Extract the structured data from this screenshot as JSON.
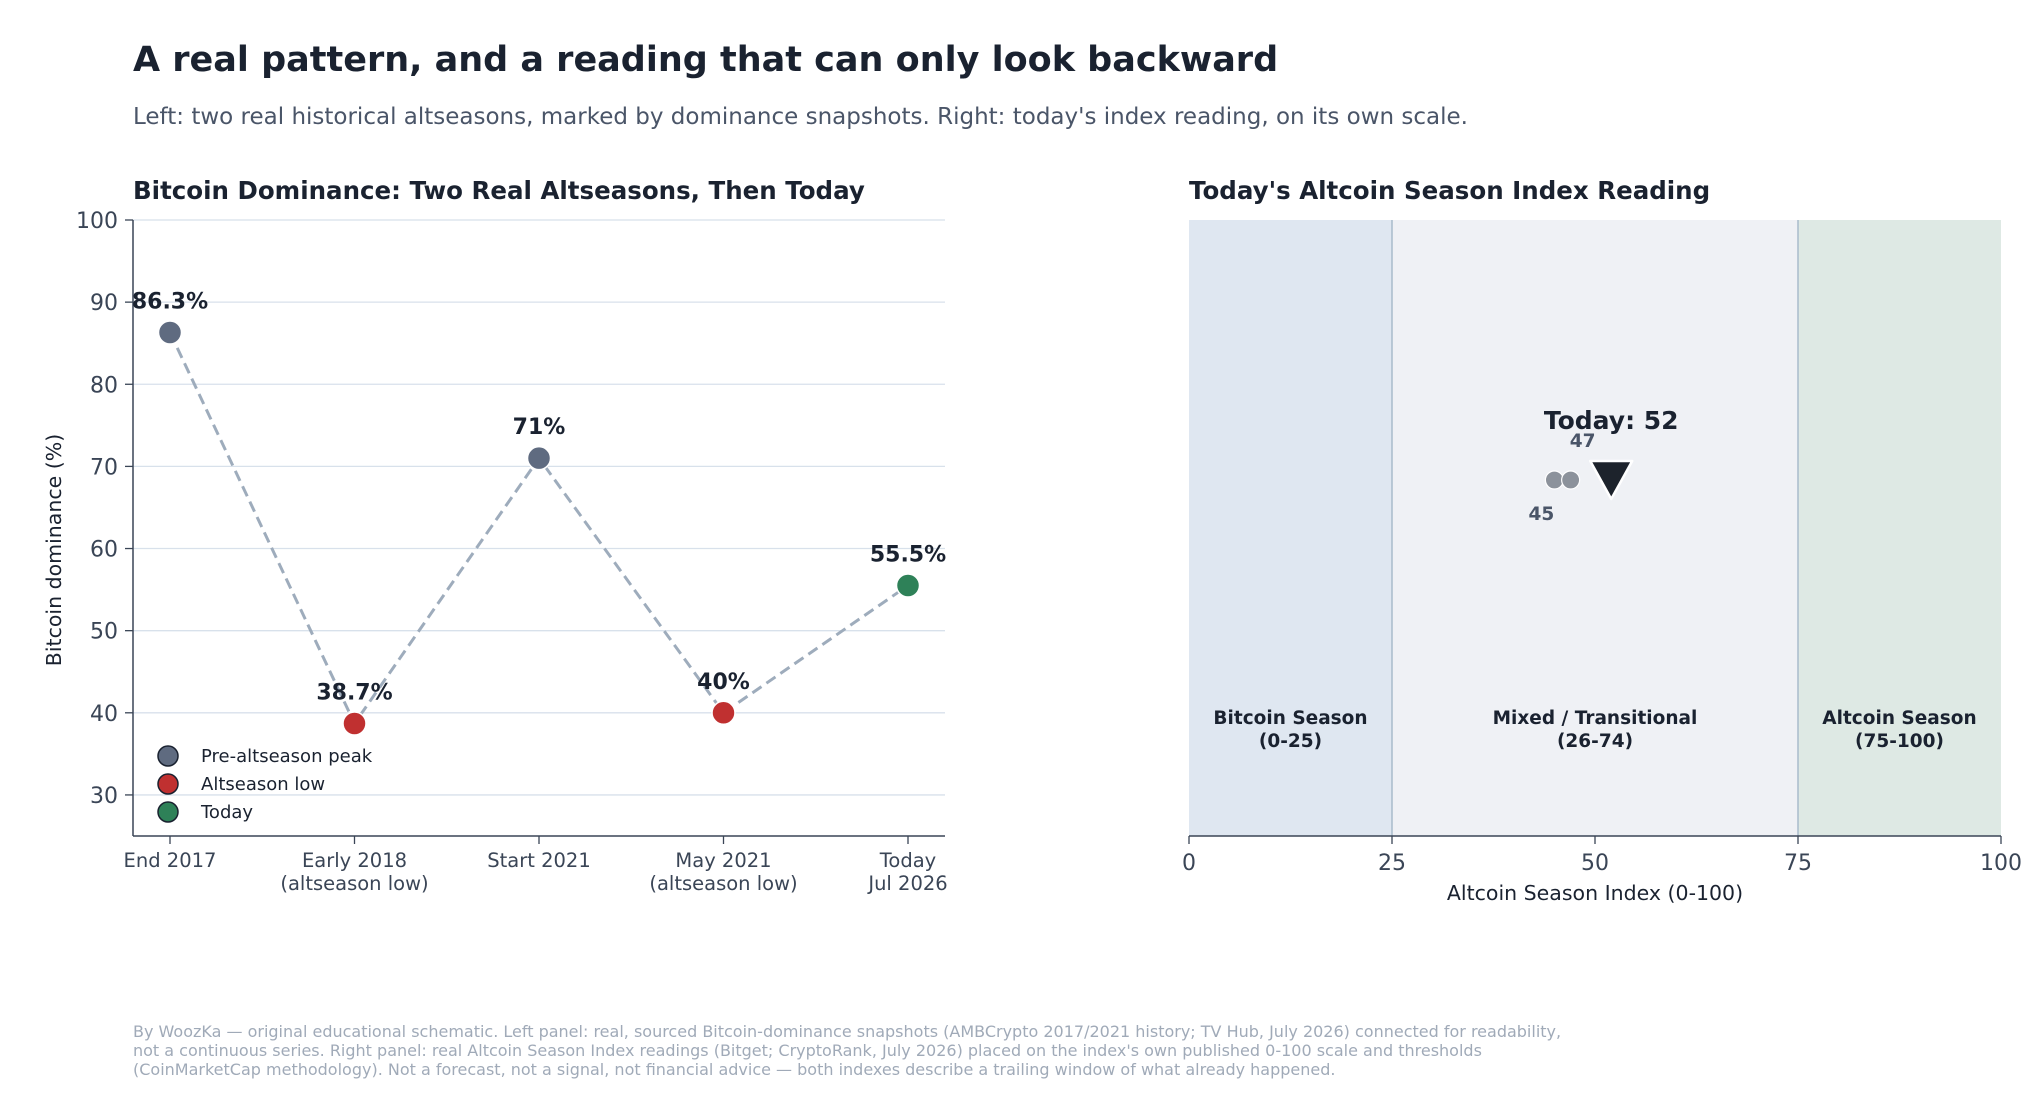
{
  "title": "A real pattern, and a reading that can only look backward",
  "subtitle": "Left: two real historical altseasons, marked by dominance snapshots. Right: today's index reading, on its own scale.",
  "chart_data": [
    {
      "type": "line",
      "title": "Bitcoin Dominance: Two Real Altseasons, Then Today",
      "ylabel": "Bitcoin dominance (%)",
      "xlabel": "",
      "ylim": [
        25,
        100
      ],
      "yticks": [
        30,
        40,
        50,
        60,
        70,
        80,
        90,
        100
      ],
      "grid": true,
      "legend_position": "bottom-left",
      "categories": [
        [
          "End 2017"
        ],
        [
          "Early 2018",
          "(altseason low)"
        ],
        [
          "Start 2021"
        ],
        [
          "May 2021",
          "(altseason low)"
        ],
        [
          "Today",
          "Jul 2026"
        ]
      ],
      "values": [
        86.3,
        38.7,
        71,
        40,
        55.5
      ],
      "point_labels": [
        "86.3%",
        "38.7%",
        "71%",
        "40%",
        "55.5%"
      ],
      "point_kinds": [
        "peak",
        "low",
        "peak",
        "low",
        "today"
      ],
      "legend": [
        {
          "kind": "peak",
          "label": "Pre-altseason peak"
        },
        {
          "kind": "low",
          "label": "Altseason low"
        },
        {
          "kind": "today",
          "label": "Today"
        }
      ],
      "colors": {
        "peak": "#5f6b80",
        "low": "#c03030",
        "today": "#2e8158",
        "line": "#9eacbc",
        "grid": "#d8e1eb",
        "axis": "#3a4556"
      }
    },
    {
      "type": "scatter",
      "title": "Today's Altcoin Season Index Reading",
      "xlabel": "Altcoin Season Index (0-100)",
      "xlim": [
        0,
        100
      ],
      "xticks": [
        0,
        25,
        50,
        75,
        100
      ],
      "zones": [
        {
          "from": 0,
          "to": 25,
          "label": [
            "Bitcoin Season",
            "(0-25)"
          ],
          "color": "#dfe7f1"
        },
        {
          "from": 25,
          "to": 75,
          "label": [
            "Mixed / Transitional",
            "(26-74)"
          ],
          "color": "#eff1f5"
        },
        {
          "from": 75,
          "to": 100,
          "label": [
            "Altcoin Season",
            "(75-100)"
          ],
          "color": "#dee9e4"
        }
      ],
      "readings": [
        {
          "value": 45,
          "label": "45"
        },
        {
          "value": 47,
          "label": "47"
        }
      ],
      "today": {
        "value": 52,
        "label": "Today: 52"
      },
      "colors": {
        "reading": "#8c929b",
        "reading_label": "#4a5568",
        "marker": "#1d232c",
        "boundary": "#a9bccb",
        "axis": "#3a4556"
      }
    }
  ],
  "footer": [
    "By WoozKa — original educational schematic. Left panel: real, sourced Bitcoin-dominance snapshots (AMBCrypto 2017/2021 history; TV Hub, July 2026) connected for readability,",
    "not a continuous series. Right panel: real Altcoin Season Index readings (Bitget; CryptoRank, July 2026) placed on the index's own published 0-100 scale and thresholds",
    "(CoinMarketCap methodology). Not a forecast, not a signal, not financial advice — both indexes describe a trailing window of what already happened."
  ]
}
